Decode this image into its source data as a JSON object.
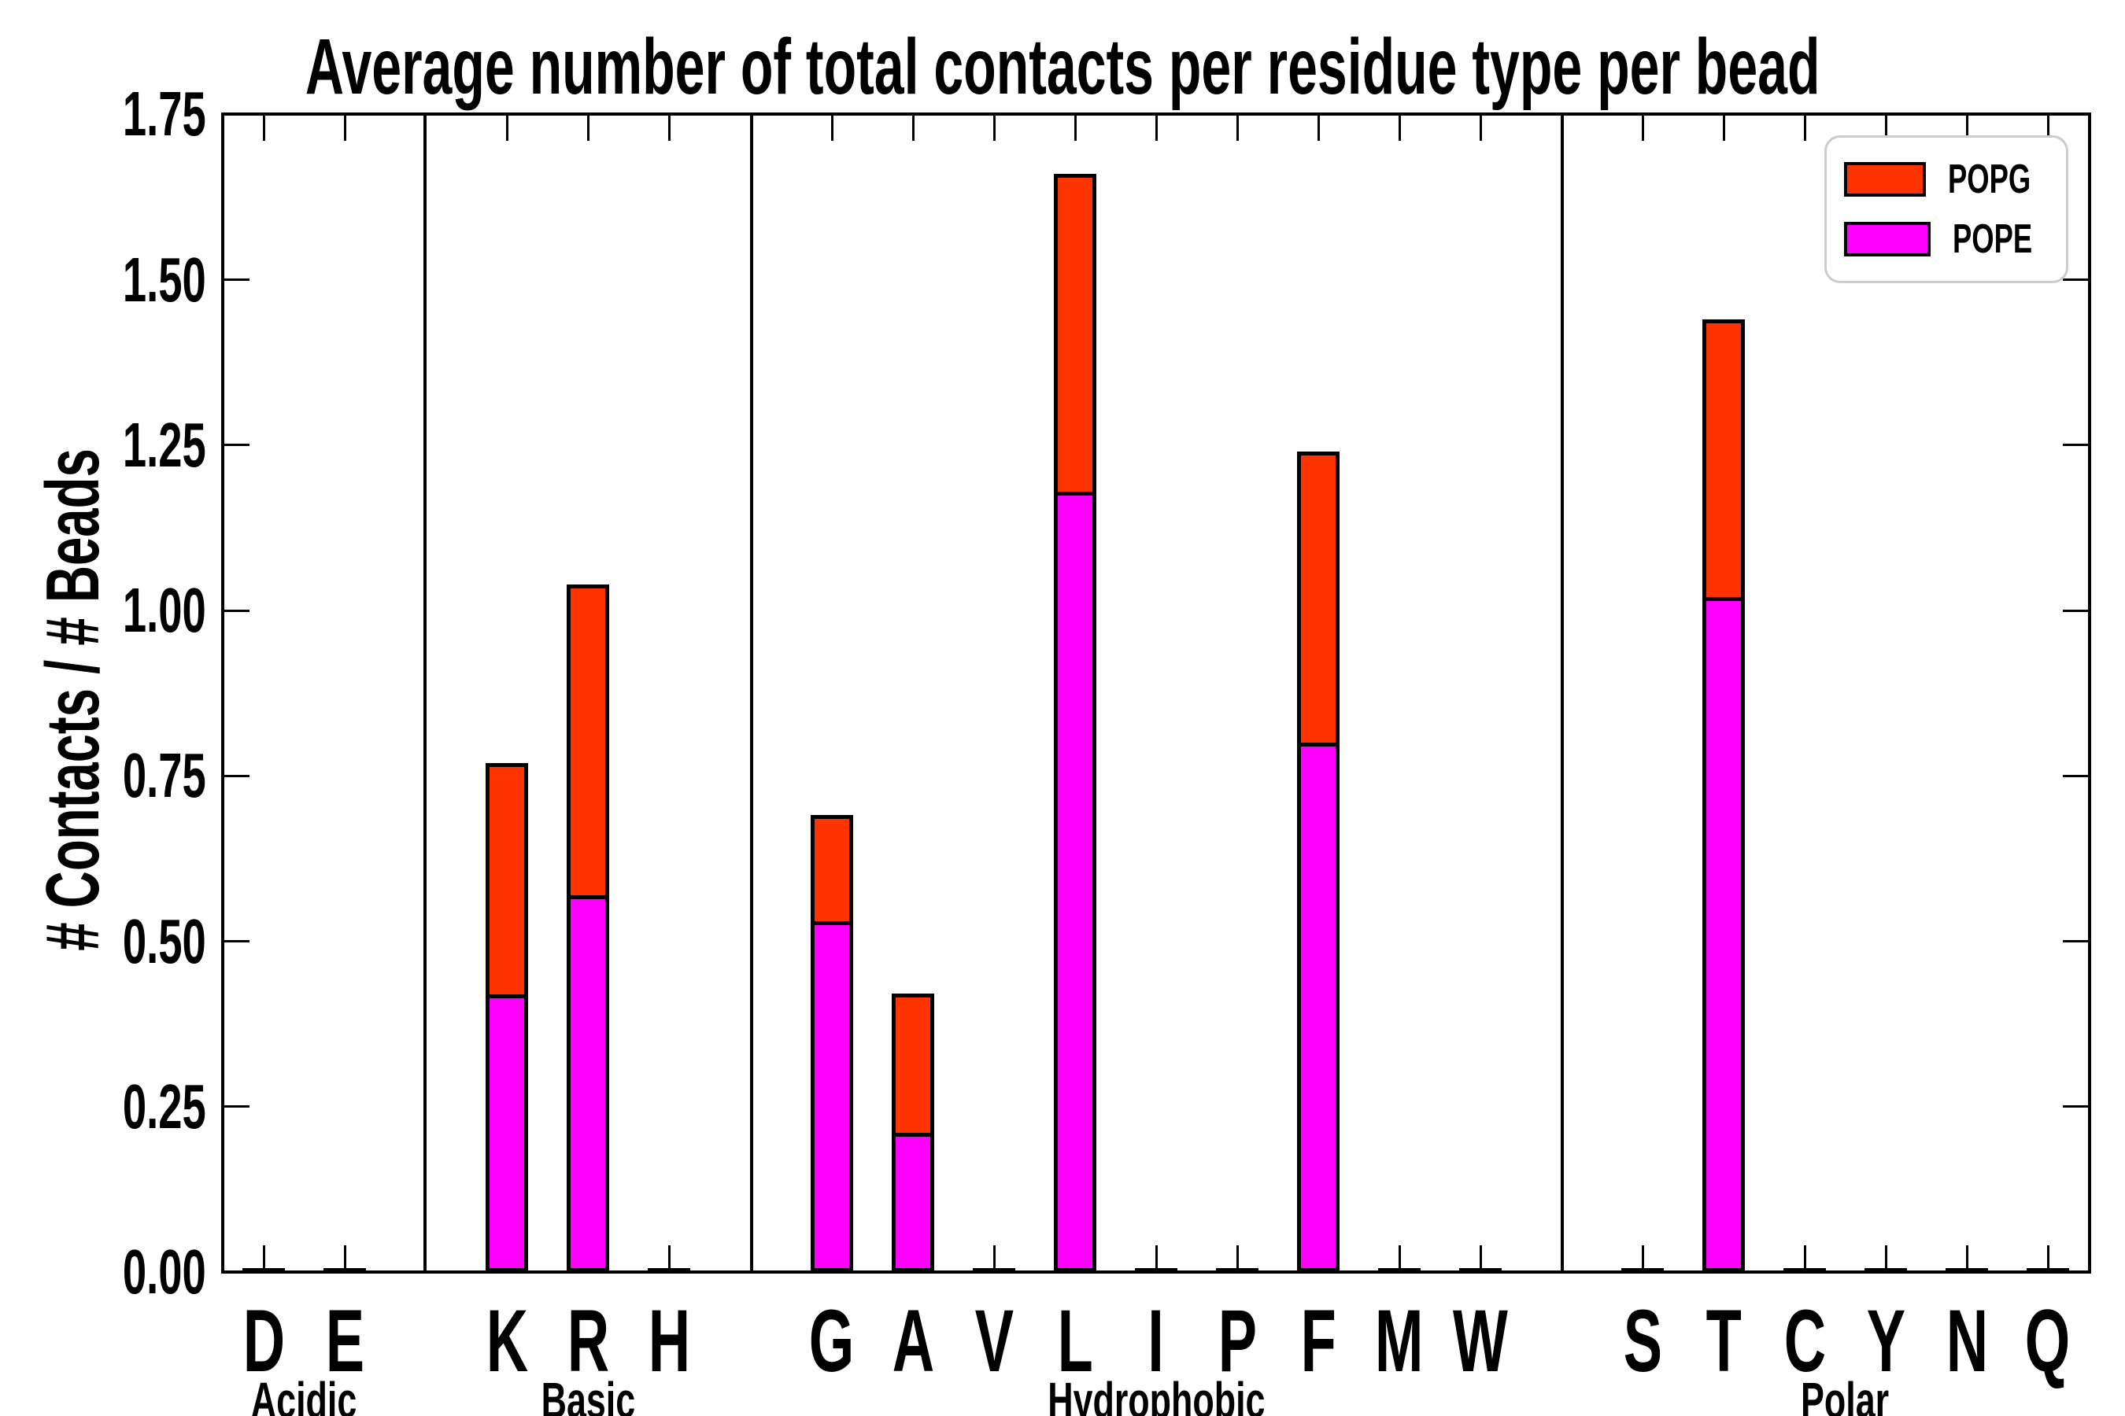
{
  "chart_data": {
    "type": "bar",
    "stacked": true,
    "title": "Average number of total contacts per residue type per bead",
    "ylabel": "# Contacts / # Beads",
    "xlabel": "",
    "ylim": [
      0,
      1.75
    ],
    "ytick_labels": [
      "0.00",
      "0.25",
      "0.50",
      "0.75",
      "1.00",
      "1.25",
      "1.50",
      "1.75"
    ],
    "grid": false,
    "legend_position": "upper right",
    "series_order_bottom_to_top": [
      "POPE",
      "POPG"
    ],
    "legend": [
      {
        "label": "POPG",
        "color": "#FF3300"
      },
      {
        "label": "POPE",
        "color": "#FF00FF"
      }
    ],
    "groups": [
      {
        "label": "Acidic",
        "residues": [
          {
            "label": "D",
            "POPE": 0,
            "POPG": 0
          },
          {
            "label": "E",
            "POPE": 0,
            "POPG": 0
          }
        ]
      },
      {
        "label": "Basic",
        "residues": [
          {
            "label": "K",
            "POPE": 0.42,
            "POPG": 0.35
          },
          {
            "label": "R",
            "POPE": 0.57,
            "POPG": 0.47
          },
          {
            "label": "H",
            "POPE": 0,
            "POPG": 0
          }
        ]
      },
      {
        "label": "Hydrophobic",
        "residues": [
          {
            "label": "G",
            "POPE": 0.53,
            "POPG": 0.16
          },
          {
            "label": "A",
            "POPE": 0.21,
            "POPG": 0.21
          },
          {
            "label": "V",
            "POPE": 0,
            "POPG": 0
          },
          {
            "label": "L",
            "POPE": 1.18,
            "POPG": 0.48
          },
          {
            "label": "I",
            "POPE": 0,
            "POPG": 0
          },
          {
            "label": "P",
            "POPE": 0,
            "POPG": 0
          },
          {
            "label": "F",
            "POPE": 0.8,
            "POPG": 0.44
          },
          {
            "label": "M",
            "POPE": 0,
            "POPG": 0
          },
          {
            "label": "W",
            "POPE": 0,
            "POPG": 0
          }
        ]
      },
      {
        "label": "Polar",
        "residues": [
          {
            "label": "S",
            "POPE": 0,
            "POPG": 0
          },
          {
            "label": "T",
            "POPE": 1.02,
            "POPG": 0.42
          },
          {
            "label": "C",
            "POPE": 0,
            "POPG": 0
          },
          {
            "label": "Y",
            "POPE": 0,
            "POPG": 0
          },
          {
            "label": "N",
            "POPE": 0,
            "POPG": 0
          },
          {
            "label": "Q",
            "POPE": 0,
            "POPG": 0
          }
        ]
      }
    ],
    "colors": {
      "POPE": "#FF00FF",
      "POPG": "#FF3300",
      "axis": "#000000"
    }
  }
}
